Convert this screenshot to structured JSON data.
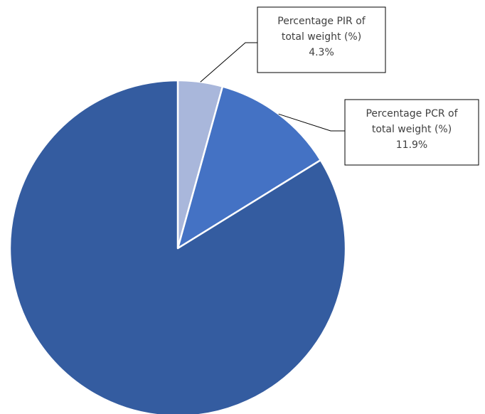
{
  "chart_data": {
    "type": "pie",
    "start": "12 o'clock, clockwise",
    "slices": [
      {
        "value": 4.3,
        "color": "#a9b7db",
        "callout": [
          "Percentage PIR of",
          "total weight (%)",
          "4.3%"
        ]
      },
      {
        "value": 11.9,
        "color": "#4472c4",
        "callout": [
          "Percentage PCR of",
          "total weight (%)",
          "11.9%"
        ]
      },
      {
        "value": 83.8,
        "color": "#345ca0",
        "callout": null
      }
    ],
    "slice_border_color": "#ffffff",
    "callout_border_color": "#000000",
    "callout_text_color": "#404040"
  }
}
